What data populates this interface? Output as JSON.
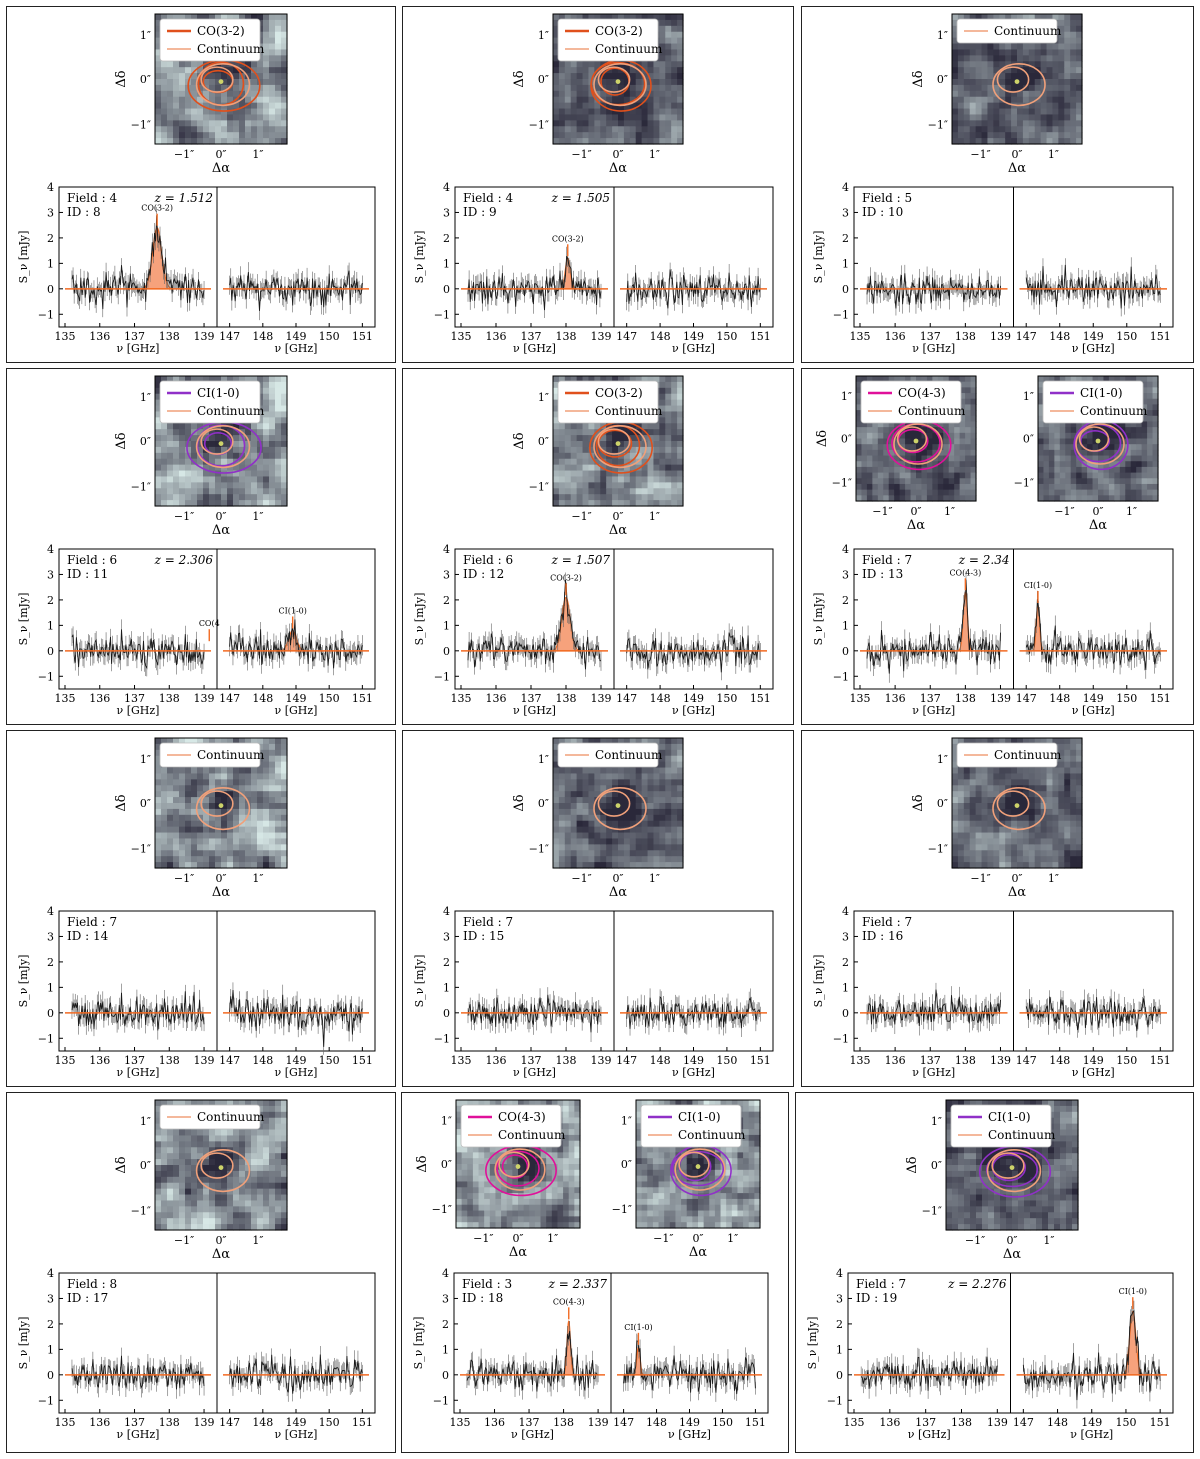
{
  "colors": {
    "co32": "#e0501c",
    "co43": "#e0109a",
    "ci10": "#9030c8",
    "continuum": "#f0a07a",
    "model": "#f26a22",
    "fill": "#f6a27c",
    "data": "#1a1a1a"
  },
  "labels": {
    "ylabel": "S_ν [mJy]",
    "xlabel": "ν [GHz]",
    "map_xlabel": "Δα",
    "map_ylabel": "Δδ",
    "map_ticks": [
      "−1″",
      "0″",
      "1″"
    ],
    "spec_yticks": [
      "−1",
      "0",
      "1",
      "2",
      "3",
      "4"
    ],
    "spec_xticks_left": [
      "135",
      "136",
      "137",
      "138",
      "139"
    ],
    "spec_xticks_right": [
      "147",
      "148",
      "149",
      "150",
      "151"
    ],
    "field_prefix": "Field :",
    "id_prefix": "ID :",
    "z_prefix": "z ="
  },
  "chart_data": [
    {
      "type": "line",
      "field": "4",
      "id": "8",
      "z": "1.512",
      "legends": [
        "CO(3-2)",
        "Continuum"
      ],
      "lines": [
        {
          "name": "CO(3-2)",
          "freq": 137.65,
          "peak": 2.4,
          "width": 0.13
        }
      ],
      "ylim": [
        -1.5,
        4
      ],
      "xlim_left": [
        135,
        139.2
      ],
      "xlim_right": [
        146.8,
        151.2
      ]
    },
    {
      "type": "line",
      "field": "4",
      "id": "9",
      "z": "1.505",
      "legends": [
        "CO(3-2)",
        "Continuum"
      ],
      "lines": [
        {
          "name": "CO(3-2)",
          "freq": 138.05,
          "peak": 1.2,
          "width": 0.07
        }
      ],
      "ylim": [
        -1.5,
        4
      ],
      "xlim_left": [
        135,
        139.2
      ],
      "xlim_right": [
        146.8,
        151.2
      ]
    },
    {
      "type": "line",
      "field": "5",
      "id": "10",
      "z": "",
      "legends": [
        "Continuum"
      ],
      "lines": [],
      "ylim": [
        -1.5,
        4
      ],
      "xlim_left": [
        135,
        139.2
      ],
      "xlim_right": [
        146.8,
        151.2
      ]
    },
    {
      "type": "line",
      "field": "6",
      "id": "11",
      "z": "2.306",
      "legends": [
        "CI(1-0)",
        "Continuum"
      ],
      "lines": [
        {
          "name": "CI(1-0)",
          "freq": 148.9,
          "peak": 0.8,
          "width": 0.12
        },
        {
          "name": "CO(4",
          "freq": 139.15,
          "peak": 0,
          "width": 0.05
        }
      ],
      "ylim": [
        -1.5,
        4
      ],
      "xlim_left": [
        135,
        139.2
      ],
      "xlim_right": [
        146.8,
        151.2
      ]
    },
    {
      "type": "line",
      "field": "6",
      "id": "12",
      "z": "1.507",
      "legends": [
        "CO(3-2)",
        "Continuum"
      ],
      "lines": [
        {
          "name": "CO(3-2)",
          "freq": 138.0,
          "peak": 2.1,
          "width": 0.12
        }
      ],
      "ylim": [
        -1.5,
        4
      ],
      "xlim_left": [
        135,
        139.2
      ],
      "xlim_right": [
        146.8,
        151.2
      ]
    },
    {
      "type": "line",
      "field": "7",
      "id": "13",
      "z": "2.34",
      "legends": [
        "CO(4-3)",
        "Continuum",
        "CI(1-0)",
        "Continuum"
      ],
      "lines": [
        {
          "name": "CO(4-3)",
          "freq": 138.0,
          "peak": 2.3,
          "width": 0.06
        },
        {
          "name": "CI(1-0)",
          "freq": 147.35,
          "peak": 1.8,
          "width": 0.05
        }
      ],
      "ylim": [
        -1.5,
        4
      ],
      "xlim_left": [
        135,
        139.2
      ],
      "xlim_right": [
        146.8,
        151.2
      ]
    },
    {
      "type": "line",
      "field": "7",
      "id": "14",
      "z": "",
      "legends": [
        "Continuum"
      ],
      "lines": [],
      "ylim": [
        -1.5,
        4
      ],
      "xlim_left": [
        135,
        139.2
      ],
      "xlim_right": [
        146.8,
        151.2
      ]
    },
    {
      "type": "line",
      "field": "7",
      "id": "15",
      "z": "",
      "legends": [
        "Continuum"
      ],
      "lines": [],
      "ylim": [
        -1.5,
        4
      ],
      "xlim_left": [
        135,
        139.2
      ],
      "xlim_right": [
        146.8,
        151.2
      ]
    },
    {
      "type": "line",
      "field": "7",
      "id": "16",
      "z": "",
      "legends": [
        "Continuum"
      ],
      "lines": [],
      "ylim": [
        -1.5,
        4
      ],
      "xlim_left": [
        135,
        139.2
      ],
      "xlim_right": [
        146.8,
        151.2
      ]
    },
    {
      "type": "line",
      "field": "8",
      "id": "17",
      "z": "",
      "legends": [
        "Continuum"
      ],
      "lines": [],
      "ylim": [
        -1.5,
        4
      ],
      "xlim_left": [
        135,
        139.2
      ],
      "xlim_right": [
        146.8,
        151.2
      ]
    },
    {
      "type": "line",
      "field": "3",
      "id": "18",
      "z": "2.337",
      "legends": [
        "CO(4-3)",
        "Continuum",
        "CI(1-0)",
        "Continuum"
      ],
      "lines": [
        {
          "name": "CO(4-3)",
          "freq": 138.15,
          "peak": 2.1,
          "width": 0.05
        },
        {
          "name": "CI(1-0)",
          "freq": 147.45,
          "peak": 1.1,
          "width": 0.05
        }
      ],
      "ylim": [
        -1.5,
        4
      ],
      "xlim_left": [
        135,
        139.2
      ],
      "xlim_right": [
        146.8,
        151.2
      ]
    },
    {
      "type": "line",
      "field": "7",
      "id": "19",
      "z": "2.276",
      "legends": [
        "CI(1-0)",
        "Continuum"
      ],
      "lines": [
        {
          "name": "CI(1-0)",
          "freq": 150.2,
          "peak": 2.5,
          "width": 0.09
        }
      ],
      "ylim": [
        -1.5,
        4
      ],
      "xlim_left": [
        135,
        139.2
      ],
      "xlim_right": [
        146.8,
        151.2
      ]
    }
  ]
}
